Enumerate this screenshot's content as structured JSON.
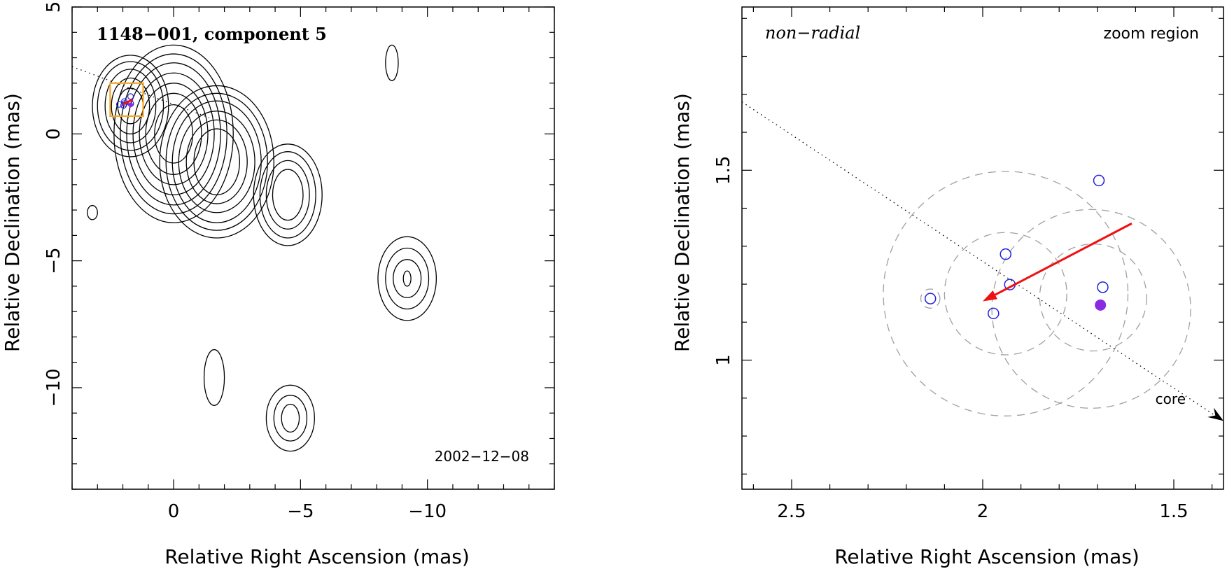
{
  "chart_data": [
    {
      "type": "contour",
      "title": "1148−001, component 5",
      "date": "2002−12−08",
      "xlabel": "Relative Right Ascension (mas)",
      "ylabel": "Relative Declination (mas)",
      "xlim": [
        4,
        -15
      ],
      "ylim": [
        -14,
        5
      ],
      "xticks": [
        0,
        -5,
        -10
      ],
      "xtick_labels": [
        "0",
        "−5",
        "−10"
      ],
      "yticks": [
        5,
        0,
        -5,
        -10
      ],
      "ytick_labels": [
        "5",
        "0",
        "−5",
        "−10"
      ],
      "jet_direction_line": {
        "x": [
          4,
          -1.4
        ],
        "y": [
          2.65,
          0.64
        ]
      },
      "zoom_box": {
        "x": [
          2.5,
          1.2
        ],
        "y": [
          0.7,
          2.0
        ]
      },
      "components": [
        {
          "x": 0,
          "y": 0,
          "rx": [
            0.75,
            1.1,
            1.35,
            1.6,
            1.85,
            2.1,
            2.35
          ],
          "ry": [
            1.15,
            1.6,
            2.0,
            2.4,
            2.8,
            3.15,
            3.5
          ],
          "rot": 0
        },
        {
          "x": 1.7,
          "y": 1.1,
          "rx": [
            0.5,
            0.75,
            1.0,
            1.3,
            1.5
          ],
          "ry": [
            0.7,
            1.1,
            1.45,
            1.75,
            2.0
          ],
          "rot": 0
        },
        {
          "x": -1.7,
          "y": -1.1,
          "rx": [
            0.9,
            1.2,
            1.5,
            1.75,
            2.0,
            2.25
          ],
          "ry": [
            1.3,
            1.65,
            2.0,
            2.4,
            2.7,
            3.0
          ],
          "rot": 0
        },
        {
          "x": -4.5,
          "y": -2.4,
          "rx": [
            0.6,
            0.85,
            1.1,
            1.35
          ],
          "ry": [
            1.0,
            1.35,
            1.7,
            2.0
          ],
          "rot": 0
        },
        {
          "x": -9.2,
          "y": -5.7,
          "rx": [
            0.15,
            0.55,
            0.85,
            1.15
          ],
          "ry": [
            0.3,
            0.75,
            1.2,
            1.65
          ],
          "rot": 0
        },
        {
          "x": -4.6,
          "y": -11.2,
          "rx": [
            0.35,
            0.65,
            0.95
          ],
          "ry": [
            0.55,
            0.9,
            1.3
          ],
          "rot": 0
        },
        {
          "x": -1.6,
          "y": -9.6,
          "rx": [
            0.4
          ],
          "ry": [
            1.1
          ],
          "rot": 0
        },
        {
          "x": -8.6,
          "y": 2.8,
          "rx": [
            0.25
          ],
          "ry": [
            0.7
          ],
          "rot": 0
        },
        {
          "x": 3.2,
          "y": -3.1,
          "rx": [
            0.2
          ],
          "ry": [
            0.28
          ],
          "rot": 0
        }
      ]
    },
    {
      "type": "scatter",
      "title": "non−radial",
      "label": "zoom region",
      "annotation": "core",
      "xlabel": "Relative Right Ascension (mas)",
      "ylabel": "Relative Declination (mas)",
      "xlim": [
        2.63,
        1.37
      ],
      "ylim": [
        0.66,
        1.93
      ],
      "xticks": [
        2.5,
        2,
        1.5
      ],
      "xtick_labels": [
        "2.5",
        "2",
        "1.5"
      ],
      "yticks": [
        1.5,
        1
      ],
      "ytick_labels": [
        "1.5",
        "1"
      ],
      "points": [
        {
          "x": 2.137,
          "y": 1.162
        },
        {
          "x": 1.94,
          "y": 1.279
        },
        {
          "x": 1.929,
          "y": 1.199
        },
        {
          "x": 1.972,
          "y": 1.123
        },
        {
          "x": 1.696,
          "y": 1.473
        },
        {
          "x": 1.686,
          "y": 1.192
        }
      ],
      "filled_point": {
        "x": 1.692,
        "y": 1.145
      },
      "circles": [
        {
          "x": 2.137,
          "y": 1.162,
          "r": 0.025
        },
        {
          "x": 1.94,
          "y": 1.175,
          "r": 0.32
        },
        {
          "x": 1.94,
          "y": 1.175,
          "r": 0.16
        },
        {
          "x": 1.711,
          "y": 1.165,
          "r": 0.14
        },
        {
          "x": 1.716,
          "y": 1.135,
          "r": 0.26
        }
      ],
      "motion_vector": {
        "x": [
          1.61,
          2.0
        ],
        "y": [
          1.36,
          1.155
        ]
      },
      "jet_direction_line": {
        "x": [
          2.63,
          1.37
        ],
        "y": [
          1.68,
          0.84
        ]
      }
    }
  ]
}
